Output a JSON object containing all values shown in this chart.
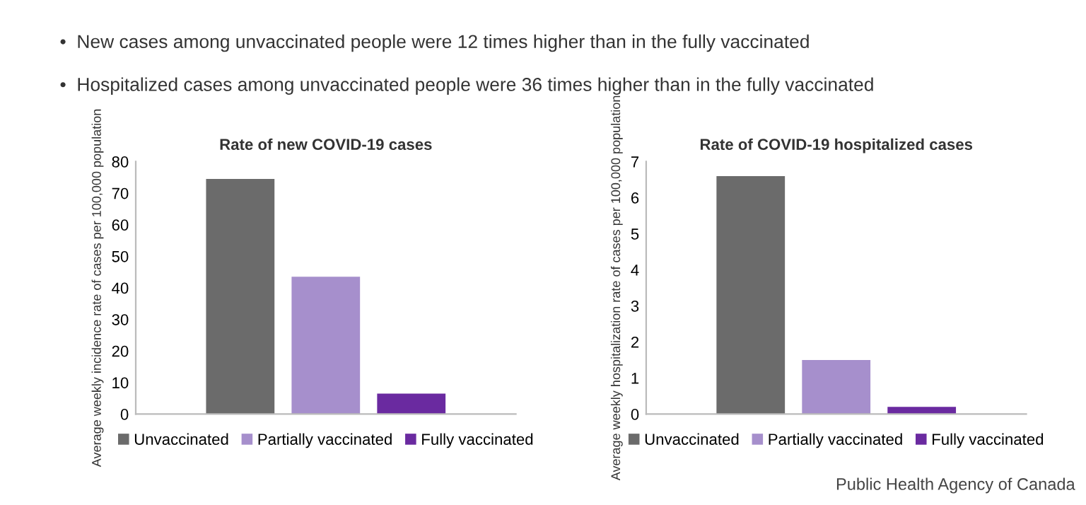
{
  "chart_data": [
    {
      "type": "bar",
      "title": "Rate of new COVID-19 cases",
      "ylabel": "Average weekly incidence rate of cases per 100,000 population",
      "categories": [
        null
      ],
      "series": [
        {
          "name": "Unvaccinated",
          "color": "#6b6b6b",
          "values": [
            74.5
          ]
        },
        {
          "name": "Partially vaccinated",
          "color": "#a68fcc",
          "values": [
            43.5
          ]
        },
        {
          "name": "Fully vaccinated",
          "color": "#6a2aa0",
          "values": [
            6.5
          ]
        }
      ],
      "ylim": [
        0,
        80
      ],
      "yticks": [
        0,
        10,
        20,
        30,
        40,
        50,
        60,
        70,
        80
      ],
      "legend": "bottom",
      "annotations": [
        "•  New cases among unvaccinated people were 12 times higher than in the fully vaccinated",
        "•  Hospitalized cases among unvaccinated people were 36 times higher than in the fully vaccinated"
      ]
    },
    {
      "type": "bar",
      "title": "Rate of COVID-19 hospitalized cases",
      "ylabel": "Average weekly hospitalization rate of cases per 100,000 population",
      "categories": [
        null
      ],
      "series": [
        {
          "name": "Unvaccinated",
          "color": "#6b6b6b",
          "values": [
            6.6
          ]
        },
        {
          "name": "Partially vaccinated",
          "color": "#a68fcc",
          "values": [
            1.5
          ]
        },
        {
          "name": "Fully vaccinated",
          "color": "#6a2aa0",
          "values": [
            0.2
          ]
        }
      ],
      "ylim": [
        0,
        7
      ],
      "yticks": [
        0,
        1,
        2,
        3,
        4,
        5,
        6,
        7
      ],
      "legend": "bottom",
      "annotations": [
        "Public Health Agency of Canada"
      ]
    }
  ]
}
